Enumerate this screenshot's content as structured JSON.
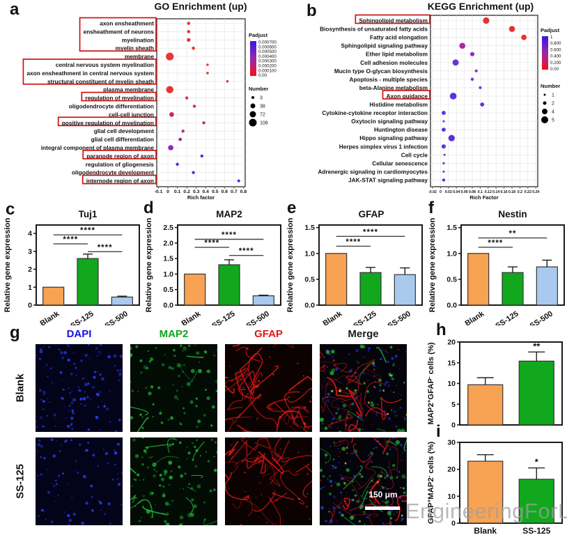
{
  "watermark": {
    "text": "EngineeringForLife"
  },
  "panels": {
    "a": {
      "letter": "a",
      "title": "GO Enrichment (up)",
      "xlabel": "Rich factor",
      "xticks": [
        "-0.1",
        "0",
        "0.1",
        "0.2",
        "0.3",
        "0.4",
        "0.5",
        "0.6",
        "0.7",
        "0.8"
      ],
      "rows": [
        {
          "term": "axon ensheathment",
          "rich": 0.22,
          "r": 2.3,
          "color": "#e73535"
        },
        {
          "term": "ensheathment of neurons",
          "rich": 0.22,
          "r": 2.3,
          "color": "#e73535"
        },
        {
          "term": "myelination",
          "rich": 0.22,
          "r": 2.7,
          "color": "#e73535"
        },
        {
          "term": "myelin sheath",
          "rich": 0.27,
          "r": 2.3,
          "color": "#e73535"
        },
        {
          "term": "membrane",
          "rich": 0.02,
          "r": 5.6,
          "color": "#e73535"
        },
        {
          "term": "central nervous system myelination",
          "rich": 0.42,
          "r": 1.8,
          "color": "#e73535"
        },
        {
          "term": "axon ensheathment in central nervous system",
          "rich": 0.42,
          "r": 1.8,
          "color": "#e73535"
        },
        {
          "term": "structural constituent of myelin sheath",
          "rich": 0.63,
          "r": 1.8,
          "color": "#e73535"
        },
        {
          "term": "plasma membrane",
          "rich": 0.02,
          "r": 5.2,
          "color": "#e73535"
        },
        {
          "term": "regulation of myelination",
          "rich": 0.2,
          "r": 2.2,
          "color": "#df3040"
        },
        {
          "term": "oligodendrocyte differentiation",
          "rich": 0.28,
          "r": 2.2,
          "color": "#d02c4e"
        },
        {
          "term": "cell-cell junction",
          "rich": 0.04,
          "r": 3.4,
          "color": "#c62a52"
        },
        {
          "term": "positive regulation of myelination",
          "rich": 0.38,
          "r": 2.2,
          "color": "#cc2a5e"
        },
        {
          "term": "glial cell development",
          "rich": 0.16,
          "r": 2.2,
          "color": "#b62a72"
        },
        {
          "term": "glial cell differentiation",
          "rich": 0.13,
          "r": 2.4,
          "color": "#a52887"
        },
        {
          "term": "integral component of plasma membrane",
          "rich": 0.03,
          "r": 3.8,
          "color": "#8e2ab4"
        },
        {
          "term": "paranode region of axon",
          "rich": 0.36,
          "r": 2.2,
          "color": "#4e33da"
        },
        {
          "term": "regulation of gliogenesis",
          "rich": 0.1,
          "r": 2.2,
          "color": "#3f31e2"
        },
        {
          "term": "oligodendrocyte development",
          "rich": 0.27,
          "r": 2.2,
          "color": "#5530d6"
        },
        {
          "term": "internode region of axon",
          "rich": 0.75,
          "r": 2.0,
          "color": "#3b2fe8"
        }
      ],
      "boxes": [
        [
          0,
          3
        ],
        [
          5,
          7
        ],
        [
          9,
          9
        ],
        [
          12,
          12
        ],
        [
          16,
          16
        ],
        [
          19,
          19
        ]
      ],
      "legend": {
        "padjust_title": "Padjust",
        "padjust_labels": [
          "0.000700",
          "0.000600",
          "0.000500",
          "0.000400",
          "0.000300",
          "0.000200",
          "0.000100",
          "0.00"
        ],
        "number_title": "Number",
        "number_items": [
          {
            "label": "3",
            "r": 2
          },
          {
            "label": "38",
            "r": 3.5
          },
          {
            "label": "72",
            "r": 4.5
          },
          {
            "label": "108",
            "r": 5.5
          }
        ]
      }
    },
    "b": {
      "letter": "b",
      "title": "KEGG Enrichment (up)",
      "xlabel": "Rich Factor",
      "xticks": [
        "-0.02",
        "0",
        "0.02",
        "0.04",
        "0.06",
        "0.08",
        "0.1",
        "0.12",
        "0.14",
        "0.16",
        "0.18",
        "0.2",
        "0.22",
        "0.24"
      ],
      "rows": [
        {
          "term": "Sphingolipid metabolism",
          "rich": 0.115,
          "r": 4.6,
          "color": "#e83030"
        },
        {
          "term": "Biosynthesis of unsaturated fatty acids",
          "rich": 0.18,
          "r": 4.3,
          "color": "#e83030"
        },
        {
          "term": "Fatty acid elongation",
          "rich": 0.21,
          "r": 3.9,
          "color": "#e83434"
        },
        {
          "term": "Sphingolipid signaling pathway",
          "rich": 0.055,
          "r": 4.3,
          "color": "#a829aa"
        },
        {
          "term": "Ether lipid metabolism",
          "rich": 0.08,
          "r": 3.1,
          "color": "#8c2fc4"
        },
        {
          "term": "Cell adhesion molecules",
          "rich": 0.038,
          "r": 4.5,
          "color": "#6c33d4"
        },
        {
          "term": "Mucin type O-glycan biosynthesis",
          "rich": 0.09,
          "r": 2.0,
          "color": "#7d30cf"
        },
        {
          "term": "Apoptosis - multiple species",
          "rich": 0.08,
          "r": 2.2,
          "color": "#7830d2"
        },
        {
          "term": "beta-Alanine metabolism",
          "rich": 0.1,
          "r": 2.0,
          "color": "#7230d6"
        },
        {
          "term": "Axon guidance",
          "rich": 0.032,
          "r": 4.8,
          "color": "#5c2fe2"
        },
        {
          "term": "Histidine metabolism",
          "rich": 0.105,
          "r": 2.9,
          "color": "#6b2cda"
        },
        {
          "term": "Cytokine-cytokine receptor interaction",
          "rich": 0.008,
          "r": 2.9,
          "color": "#6430da"
        },
        {
          "term": "Oxytocin signaling pathway",
          "rich": 0.008,
          "r": 1.5,
          "color": "#6430da"
        },
        {
          "term": "Huntington disease",
          "rich": 0.008,
          "r": 2.9,
          "color": "#6030de"
        },
        {
          "term": "Hippo signaling pathway",
          "rich": 0.028,
          "r": 4.6,
          "color": "#5c2ee2"
        },
        {
          "term": "Herpes simplex virus 1 infection",
          "rich": 0.008,
          "r": 3.0,
          "color": "#6030dc"
        },
        {
          "term": "Cell cycle",
          "rich": 0.01,
          "r": 1.5,
          "color": "#6030dc"
        },
        {
          "term": "Cellular senescence",
          "rich": 0.008,
          "r": 1.6,
          "color": "#6030dc"
        },
        {
          "term": "Adrenergic signaling in cardiomyocytes",
          "rich": 0.008,
          "r": 1.5,
          "color": "#6030dc"
        },
        {
          "term": "JAK-STAT signaling pathway",
          "rich": 0.008,
          "r": 2.2,
          "color": "#6030dc"
        }
      ],
      "boxes": [
        [
          0,
          0
        ],
        [
          9,
          9
        ]
      ],
      "legend": {
        "padjust_title": "Padjust",
        "padjust_labels": [
          "1",
          "0.800",
          "0.600",
          "0.400",
          "0.200",
          "0.00"
        ],
        "number_title": "Number",
        "number_items": [
          {
            "label": "1",
            "r": 1.5
          },
          {
            "label": "2",
            "r": 2.5
          },
          {
            "label": "4",
            "r": 4
          },
          {
            "label": "5",
            "r": 5
          }
        ]
      }
    },
    "c": {
      "letter": "c",
      "title": "Tuj1",
      "ylabel": "Relative gene expression",
      "ymax": 4.47,
      "yticks": [
        "0",
        "1",
        "2",
        "3",
        "4"
      ],
      "categories": [
        "Blank",
        "SS-125",
        "SS-500"
      ],
      "values": [
        1.0,
        2.6,
        0.45
      ],
      "errors": [
        0,
        0.25,
        0.05
      ],
      "colors": [
        "#F8A254",
        "#11A81E",
        "#A9CAEE"
      ],
      "sig": [
        {
          "a": 0,
          "b": 2,
          "y": 3.92,
          "stars": "****"
        },
        {
          "a": 0,
          "b": 1,
          "y": 3.42,
          "stars": "****"
        },
        {
          "a": 1,
          "b": 2,
          "y": 2.98,
          "stars": "****"
        }
      ]
    },
    "d": {
      "letter": "d",
      "title": "MAP2",
      "ylabel": "Relative gene expression",
      "ymax": 2.58,
      "yticks": [
        "0.0",
        "0.5",
        "1.0",
        "1.5",
        "2.0",
        "2.5"
      ],
      "categories": [
        "Blank",
        "SS-125",
        "SS-500"
      ],
      "values": [
        1.0,
        1.3,
        0.3
      ],
      "errors": [
        0,
        0.16,
        0.02
      ],
      "colors": [
        "#F8A254",
        "#11A81E",
        "#A9CAEE"
      ],
      "sig": [
        {
          "a": 0,
          "b": 2,
          "y": 2.12,
          "stars": "****"
        },
        {
          "a": 0,
          "b": 1,
          "y": 1.86,
          "stars": "****"
        },
        {
          "a": 1,
          "b": 2,
          "y": 1.6,
          "stars": "****"
        }
      ]
    },
    "e": {
      "letter": "e",
      "title": "GFAP",
      "ylabel": "Relative gene expression",
      "ymax": 1.55,
      "yticks": [
        "0.0",
        "0.5",
        "1.0",
        "1.5"
      ],
      "categories": [
        "Blank",
        "SS-125",
        "SS-500"
      ],
      "values": [
        1.0,
        0.63,
        0.59
      ],
      "errors": [
        0,
        0.1,
        0.13
      ],
      "colors": [
        "#F8A254",
        "#11A81E",
        "#A9CAEE"
      ],
      "sig": [
        {
          "a": 0,
          "b": 2,
          "y": 1.33,
          "stars": "****"
        },
        {
          "a": 0,
          "b": 1,
          "y": 1.14,
          "stars": "****"
        }
      ]
    },
    "f": {
      "letter": "f",
      "title": "Nestin",
      "ylabel": "Relative gene expression",
      "ymax": 1.55,
      "yticks": [
        "0.0",
        "0.5",
        "1.0",
        "1.5"
      ],
      "categories": [
        "Blank",
        "SS-125",
        "SS-500"
      ],
      "values": [
        1.0,
        0.63,
        0.74
      ],
      "errors": [
        0,
        0.11,
        0.13
      ],
      "colors": [
        "#F8A254",
        "#11A81E",
        "#A9CAEE"
      ],
      "sig": [
        {
          "a": 0,
          "b": 2,
          "y": 1.3,
          "stars": "**"
        },
        {
          "a": 0,
          "b": 1,
          "y": 1.12,
          "stars": "****"
        }
      ]
    },
    "g": {
      "letter": "g",
      "headers": [
        {
          "label": "DAPI",
          "color": "#1414e0"
        },
        {
          "label": "MAP2",
          "color": "#12a41f"
        },
        {
          "label": "GFAP",
          "color": "#e41414"
        },
        {
          "label": "Merge",
          "color": "#1a1a1a"
        }
      ],
      "row_labels": [
        "Blank",
        "SS-125"
      ],
      "scalebar": "150 μm"
    },
    "h": {
      "letter": "h",
      "ylabel": "MAP2^+^GFAP^-^ cells (%)",
      "ymax": 20,
      "yticks": [
        "0",
        "5",
        "10",
        "15",
        "20"
      ],
      "categories": [
        "Blank",
        "SS-125"
      ],
      "values": [
        9.7,
        15.4
      ],
      "errors": [
        1.7,
        2.2
      ],
      "colors": [
        "#F8A254",
        "#11A81E"
      ],
      "star": {
        "i": 1,
        "label": "**"
      }
    },
    "i": {
      "letter": "i",
      "ylabel": "GFAP^+^MAP2^-^ cells (%)",
      "ymax": 30,
      "yticks": [
        "0",
        "10",
        "20",
        "30"
      ],
      "categories": [
        "Blank",
        "SS-125"
      ],
      "values": [
        23,
        16.3
      ],
      "errors": [
        2.4,
        4.2
      ],
      "colors": [
        "#F8A254",
        "#11A81E"
      ],
      "star": {
        "i": 1,
        "label": "*"
      }
    }
  },
  "chart_data": [
    {
      "type": "scatter",
      "title": "GO Enrichment (up)",
      "xlabel": "Rich factor",
      "xlim": [
        -0.1,
        0.8
      ],
      "categories": [
        "axon ensheathment",
        "ensheathment of neurons",
        "myelination",
        "myelin sheath",
        "membrane",
        "central nervous system myelination",
        "axon ensheathment in central nervous system",
        "structural constituent of myelin sheath",
        "plasma membrane",
        "regulation of myelination",
        "oligodendrocyte differentiation",
        "cell-cell junction",
        "positive regulation of myelination",
        "glial cell development",
        "glial cell differentiation",
        "integral component of plasma membrane",
        "paranode region of axon",
        "regulation of gliogenesis",
        "oligodendrocyte development",
        "internode region of axon"
      ],
      "x": [
        0.22,
        0.22,
        0.22,
        0.27,
        0.02,
        0.42,
        0.42,
        0.63,
        0.02,
        0.2,
        0.28,
        0.04,
        0.38,
        0.16,
        0.13,
        0.03,
        0.36,
        0.1,
        0.27,
        0.75
      ]
    },
    {
      "type": "scatter",
      "title": "KEGG Enrichment (up)",
      "xlabel": "Rich Factor",
      "xlim": [
        -0.02,
        0.24
      ],
      "categories": [
        "Sphingolipid metabolism",
        "Biosynthesis of unsaturated fatty acids",
        "Fatty acid elongation",
        "Sphingolipid signaling pathway",
        "Ether lipid metabolism",
        "Cell adhesion molecules",
        "Mucin type O-glycan biosynthesis",
        "Apoptosis - multiple species",
        "beta-Alanine metabolism",
        "Axon guidance",
        "Histidine metabolism",
        "Cytokine-cytokine receptor interaction",
        "Oxytocin signaling pathway",
        "Huntington disease",
        "Hippo signaling pathway",
        "Herpes simplex virus 1 infection",
        "Cell cycle",
        "Cellular senescence",
        "Adrenergic signaling in cardiomyocytes",
        "JAK-STAT signaling pathway"
      ],
      "x": [
        0.115,
        0.18,
        0.21,
        0.055,
        0.08,
        0.038,
        0.09,
        0.08,
        0.1,
        0.032,
        0.105,
        0.008,
        0.008,
        0.008,
        0.028,
        0.008,
        0.01,
        0.008,
        0.008,
        0.008
      ]
    },
    {
      "type": "bar",
      "title": "Tuj1",
      "ylabel": "Relative gene expression",
      "categories": [
        "Blank",
        "SS-125",
        "SS-500"
      ],
      "values": [
        1.0,
        2.6,
        0.45
      ],
      "errors": [
        0,
        0.25,
        0.05
      ],
      "ylim": [
        0,
        4.47
      ]
    },
    {
      "type": "bar",
      "title": "MAP2",
      "ylabel": "Relative gene expression",
      "categories": [
        "Blank",
        "SS-125",
        "SS-500"
      ],
      "values": [
        1.0,
        1.3,
        0.3
      ],
      "errors": [
        0,
        0.16,
        0.02
      ],
      "ylim": [
        0,
        2.58
      ]
    },
    {
      "type": "bar",
      "title": "GFAP",
      "ylabel": "Relative gene expression",
      "categories": [
        "Blank",
        "SS-125",
        "SS-500"
      ],
      "values": [
        1.0,
        0.63,
        0.59
      ],
      "errors": [
        0,
        0.1,
        0.13
      ],
      "ylim": [
        0,
        1.55
      ]
    },
    {
      "type": "bar",
      "title": "Nestin",
      "ylabel": "Relative gene expression",
      "categories": [
        "Blank",
        "SS-125",
        "SS-500"
      ],
      "values": [
        1.0,
        0.63,
        0.74
      ],
      "errors": [
        0,
        0.11,
        0.13
      ],
      "ylim": [
        0,
        1.55
      ]
    },
    {
      "type": "bar",
      "title": "MAP2+GFAP- cells (%)",
      "categories": [
        "Blank",
        "SS-125"
      ],
      "values": [
        9.7,
        15.4
      ],
      "errors": [
        1.7,
        2.2
      ],
      "ylim": [
        0,
        20
      ]
    },
    {
      "type": "bar",
      "title": "GFAP+MAP2- cells (%)",
      "categories": [
        "Blank",
        "SS-125"
      ],
      "values": [
        23,
        16.3
      ],
      "errors": [
        2.4,
        4.2
      ],
      "ylim": [
        0,
        30
      ]
    }
  ]
}
